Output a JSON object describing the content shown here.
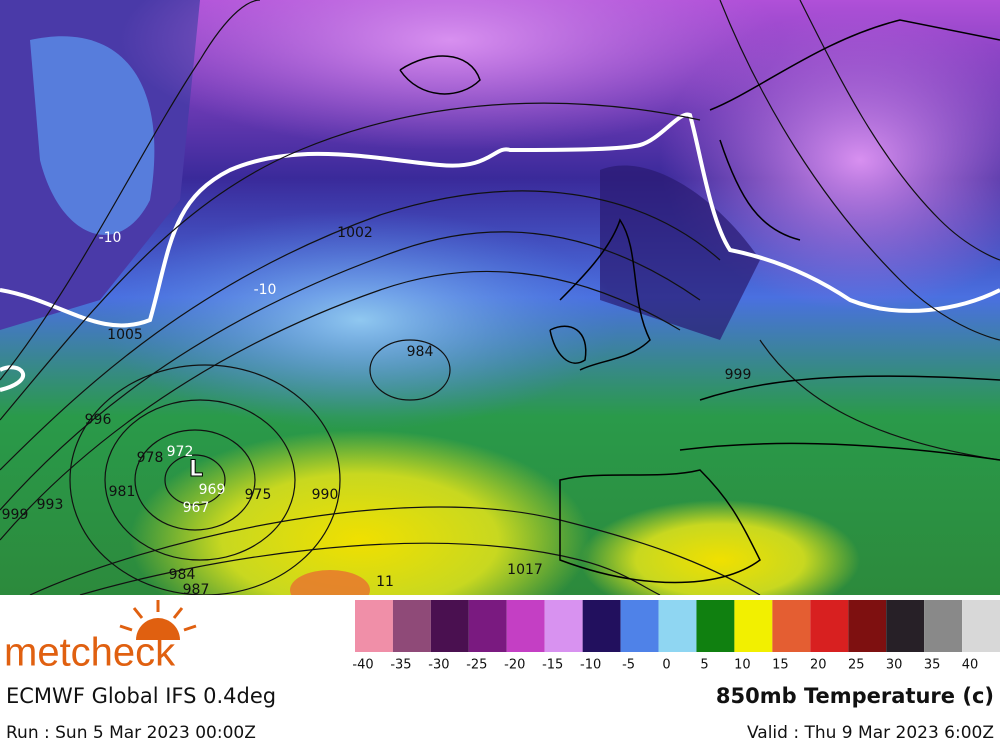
{
  "map": {
    "contour_labels": [
      "1002",
      "-10",
      "-10",
      "1005",
      "996",
      "999",
      "993",
      "981",
      "978",
      "972",
      "969",
      "967",
      "975",
      "990",
      "984",
      "984",
      "987",
      "1017",
      "11",
      "999"
    ],
    "low_marker": "L"
  },
  "legend": {
    "ticks": [
      -40,
      -35,
      -30,
      -25,
      -20,
      -15,
      -10,
      -5,
      0,
      5,
      10,
      15,
      20,
      25,
      30,
      35,
      40
    ],
    "colors": [
      "#f08fa8",
      "#8f4a78",
      "#4a1050",
      "#7a1a80",
      "#c43fc4",
      "#d892f0",
      "#22105e",
      "#4f82e8",
      "#8fd6f2",
      "#108010",
      "#f2f000",
      "#e45e32",
      "#d82020",
      "#7e1010",
      "#272027",
      "#898989",
      "#d8d8d8"
    ]
  },
  "footer": {
    "logo": "metcheck",
    "model": "ECMWF Global IFS 0.4deg",
    "field": "850mb Temperature (c)",
    "run": "Run : Sun 5 Mar 2023 00:00Z",
    "valid": "Valid : Thu 9 Mar 2023 6:00Z"
  }
}
